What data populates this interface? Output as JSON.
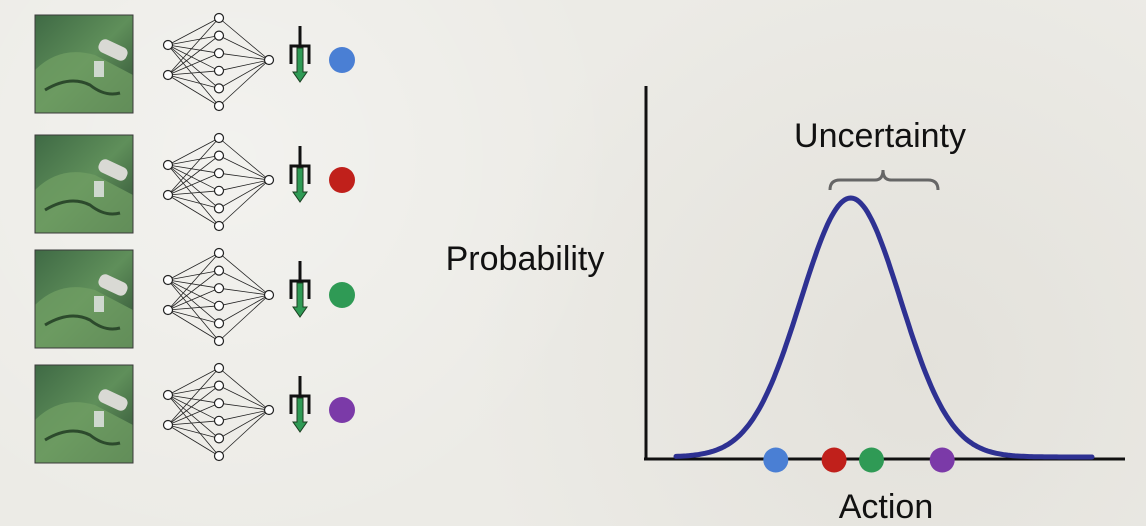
{
  "ensemble": {
    "members": [
      {
        "color": "#4a7fd4",
        "color_name": "blue"
      },
      {
        "color": "#c0201b",
        "color_name": "red"
      },
      {
        "color": "#2f9a55",
        "color_name": "green"
      },
      {
        "color": "#7b3aa8",
        "color_name": "purple"
      }
    ],
    "icons": {
      "observation": "robot-camera-photo-icon",
      "network": "neural-network-icon",
      "action": "gripper-down-arrow-icon"
    }
  },
  "plot": {
    "ylabel": "Probability",
    "xlabel": "Action",
    "annotation": "Uncertainty",
    "curve_color": "#2e3192",
    "curve_type": "gaussian",
    "mean": 0.42,
    "std": 0.12,
    "x_range": [
      0,
      1
    ],
    "samples": [
      {
        "action": 0.24,
        "color": "#4a7fd4"
      },
      {
        "action": 0.38,
        "color": "#c0201b"
      },
      {
        "action": 0.47,
        "color": "#2f9a55"
      },
      {
        "action": 0.64,
        "color": "#7b3aa8"
      }
    ]
  }
}
